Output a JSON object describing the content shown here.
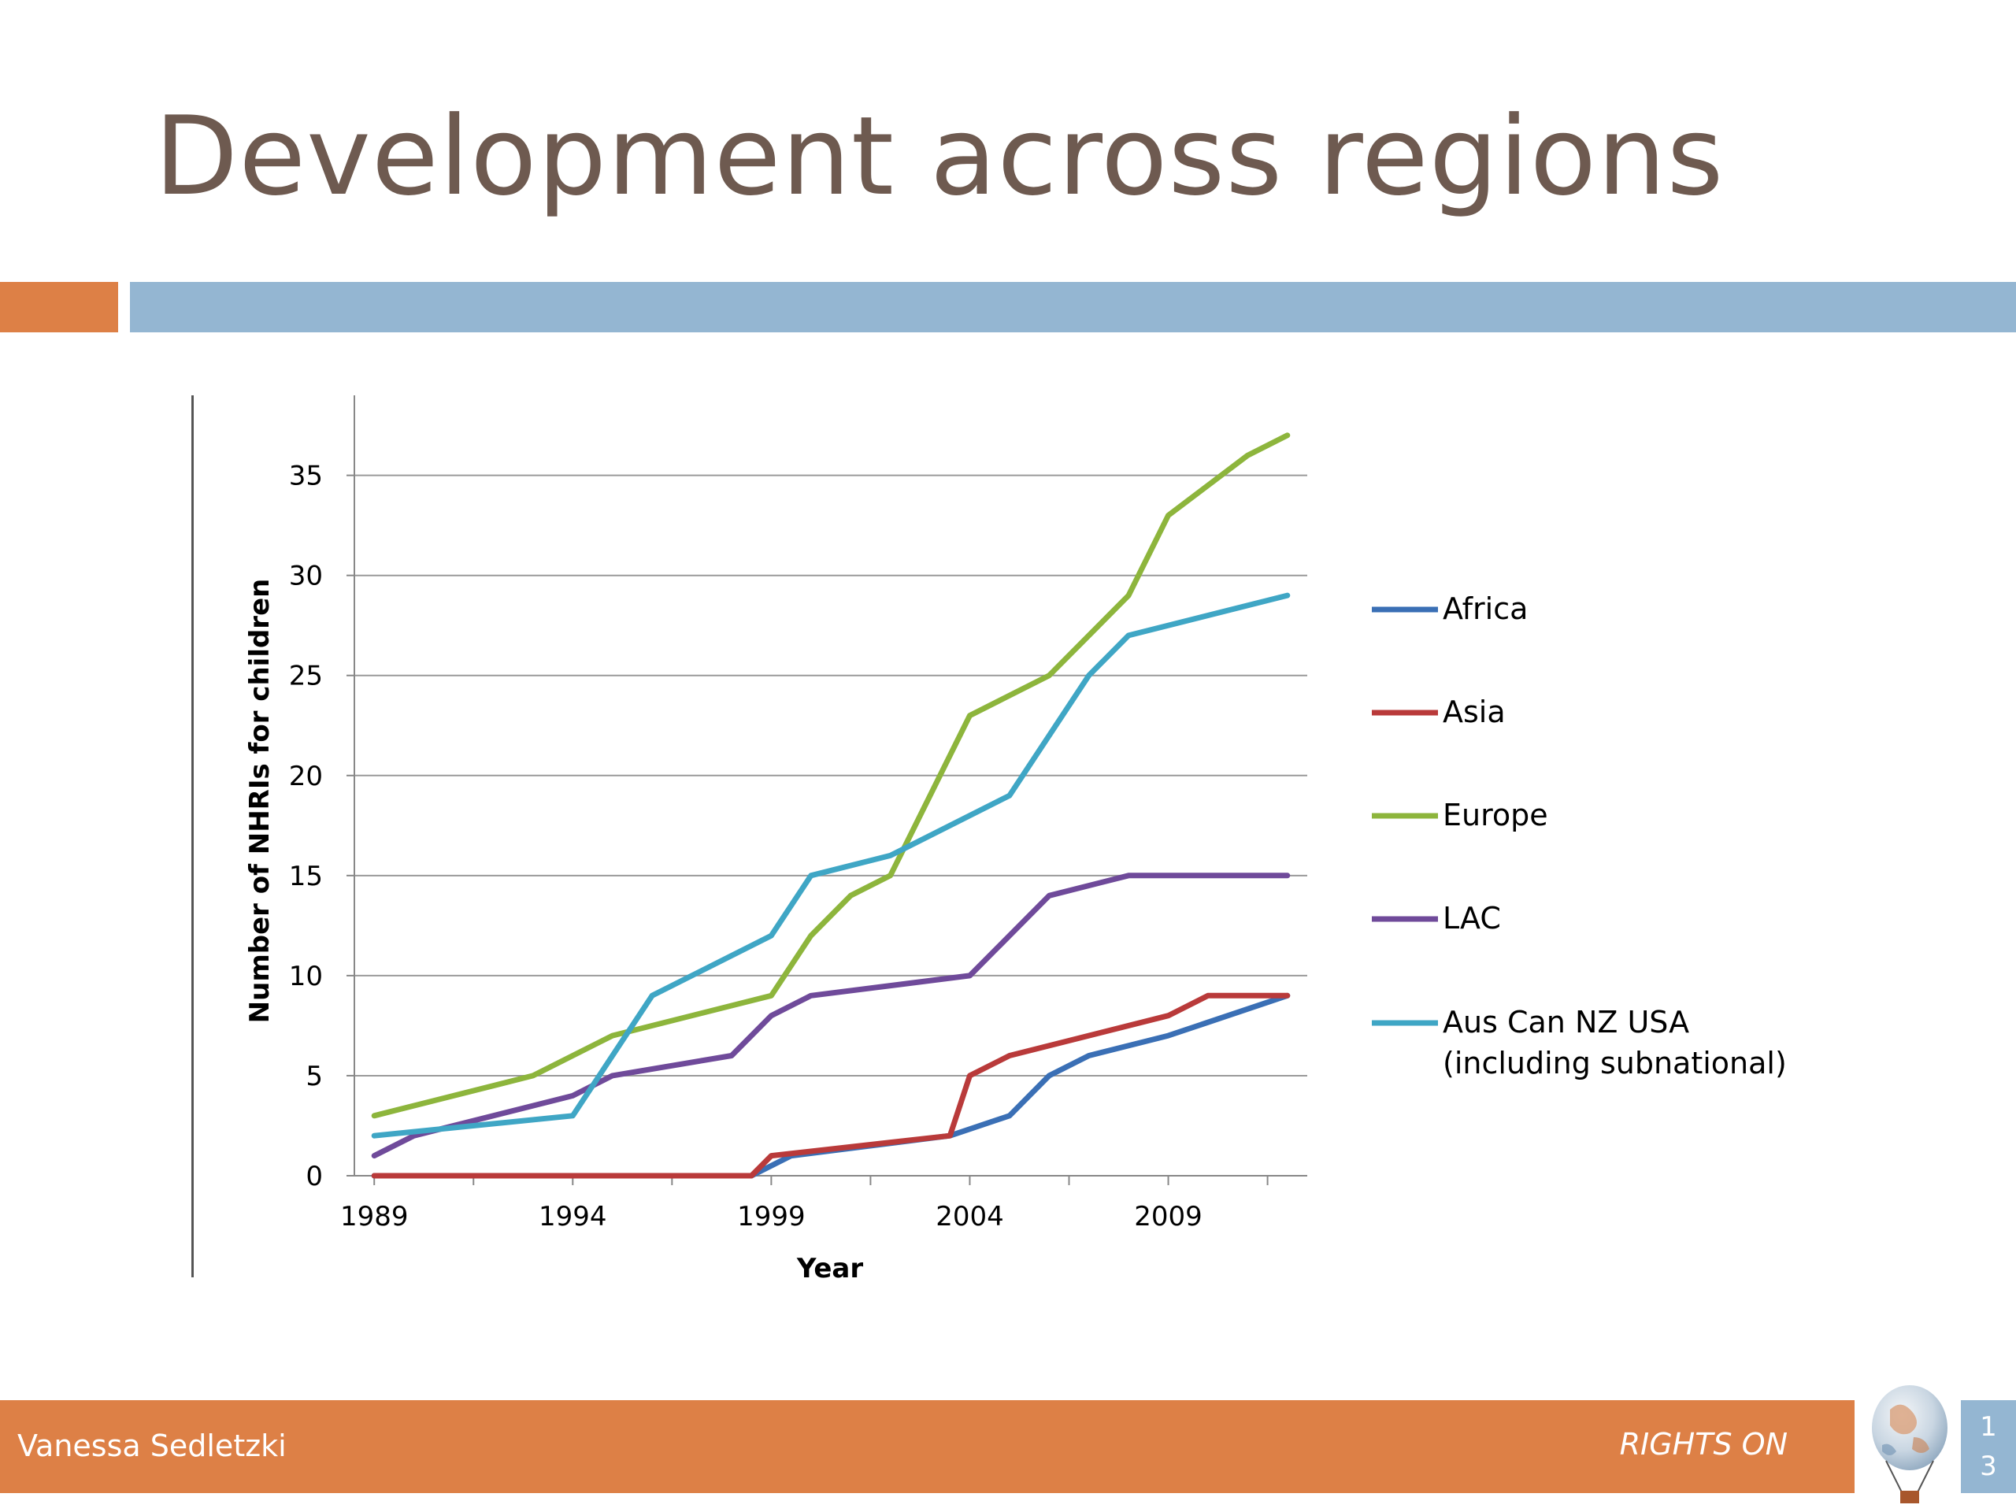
{
  "slide": {
    "title": "Development across regions",
    "footer_author": "Vanessa Sedletzki",
    "footer_brand": "RIGHTS ON",
    "page_number_top": "1",
    "page_number_bottom": "3"
  },
  "colors": {
    "title": "#6e5a50",
    "accent_orange": "#dd8046",
    "accent_blue": "#94b6d2"
  },
  "chart_data": {
    "type": "line",
    "title": "",
    "xlabel": "Year",
    "ylabel": "Number of NHRIs for children",
    "xlim": [
      1988.5,
      2012.5
    ],
    "ylim": [
      0,
      39
    ],
    "x_ticks": [
      1989,
      1994,
      1999,
      2004,
      2009
    ],
    "y_ticks": [
      0,
      5,
      10,
      15,
      20,
      25,
      30,
      35
    ],
    "grid": true,
    "legend_position": "right",
    "series": [
      {
        "name": "Africa",
        "color": "#3a6fb5",
        "points": [
          [
            1989,
            0
          ],
          [
            1998.5,
            0
          ],
          [
            1999.5,
            1
          ],
          [
            2003.5,
            2
          ],
          [
            2005,
            3
          ],
          [
            2006,
            5
          ],
          [
            2007,
            6
          ],
          [
            2009,
            7
          ],
          [
            2012,
            9
          ]
        ]
      },
      {
        "name": "Asia",
        "color": "#b93a3a",
        "points": [
          [
            1989,
            0
          ],
          [
            1998.5,
            0
          ],
          [
            1999,
            1
          ],
          [
            2003.5,
            2
          ],
          [
            2004,
            5
          ],
          [
            2005,
            6
          ],
          [
            2009,
            8
          ],
          [
            2010,
            9
          ],
          [
            2012,
            9
          ]
        ]
      },
      {
        "name": "Europe",
        "color": "#8db53c",
        "points": [
          [
            1989,
            3
          ],
          [
            1993,
            5
          ],
          [
            1995,
            7
          ],
          [
            1999,
            9
          ],
          [
            2000,
            12
          ],
          [
            2001,
            14
          ],
          [
            2002,
            15
          ],
          [
            2004,
            23
          ],
          [
            2006,
            25
          ],
          [
            2008,
            29
          ],
          [
            2009,
            33
          ],
          [
            2011,
            36
          ],
          [
            2012,
            37
          ]
        ]
      },
      {
        "name": "LAC",
        "color": "#6f4a9a",
        "points": [
          [
            1989,
            1
          ],
          [
            1990,
            2
          ],
          [
            1994,
            4
          ],
          [
            1995,
            5
          ],
          [
            1998,
            6
          ],
          [
            1999,
            8
          ],
          [
            2000,
            9
          ],
          [
            2004,
            10
          ],
          [
            2006,
            14
          ],
          [
            2008,
            15
          ],
          [
            2012,
            15
          ]
        ]
      },
      {
        "name": "Aus Can NZ USA",
        "name_line2": "(including subnational)",
        "color": "#3fa6c5",
        "points": [
          [
            1989,
            2
          ],
          [
            1994,
            3
          ],
          [
            1996,
            9
          ],
          [
            1999,
            12
          ],
          [
            2000,
            15
          ],
          [
            2002,
            16
          ],
          [
            2005,
            19
          ],
          [
            2007,
            25
          ],
          [
            2008,
            27
          ],
          [
            2012,
            29
          ]
        ]
      }
    ]
  }
}
